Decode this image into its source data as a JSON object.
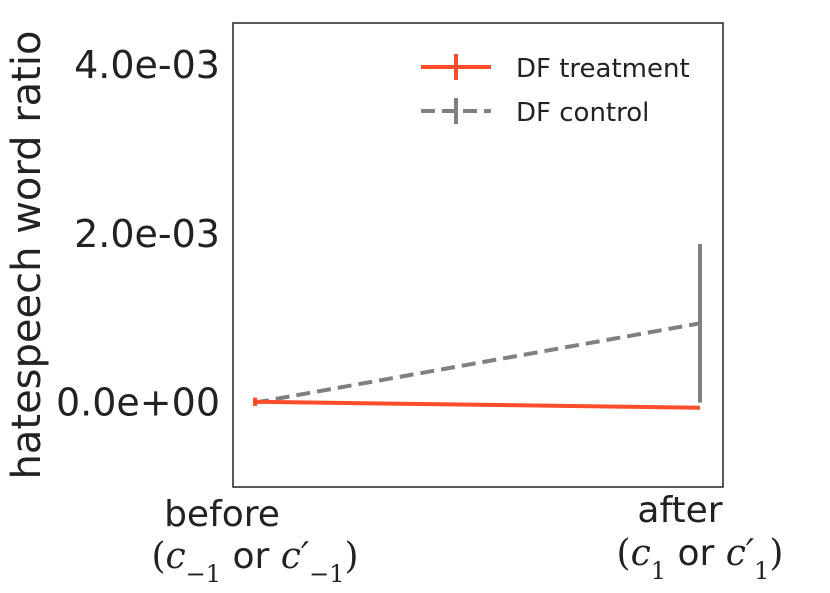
{
  "chart_data": {
    "type": "line",
    "ylabel": "hatespeech word ratio",
    "xlabel": "",
    "categories": [
      "before",
      "after"
    ],
    "category_subtitles": [
      {
        "prefix": "(",
        "a": "c",
        "a_sub": "−1",
        "or": " or ",
        "b": "c′",
        "b_sub": "−1",
        "suffix": ")"
      },
      {
        "prefix": "(",
        "a": "c",
        "a_sub": "1",
        "or": " or ",
        "b": "c′",
        "b_sub": "1",
        "suffix": ")"
      }
    ],
    "yticks": [
      0.0,
      0.002,
      0.004
    ],
    "ytick_labels": [
      "0.0e+00",
      "2.0e-03",
      "4.0e-03"
    ],
    "ylim": [
      -0.001,
      0.0045
    ],
    "grid": false,
    "legend_position": "top-right",
    "series": [
      {
        "name": "DF treatment",
        "color": "#fc4e2a",
        "linestyle": "solid",
        "values": [
          1e-05,
          -6e-05
        ],
        "errors": [
          5e-05,
          0.0
        ]
      },
      {
        "name": "DF control",
        "color": "#808080",
        "linestyle": "dashed",
        "values": [
          0.0,
          0.00094
        ],
        "errors": [
          0.0,
          0.00094
        ]
      }
    ]
  }
}
